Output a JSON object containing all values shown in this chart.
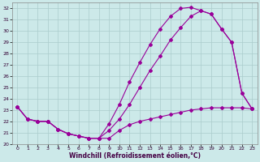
{
  "xlabel": "Windchill (Refroidissement éolien,°C)",
  "bg_color": "#cce9e9",
  "line_color": "#990099",
  "grid_color": "#aacccc",
  "xlim": [
    -0.5,
    23.5
  ],
  "ylim": [
    20,
    32.5
  ],
  "xticks": [
    0,
    1,
    2,
    3,
    4,
    5,
    6,
    7,
    8,
    9,
    10,
    11,
    12,
    13,
    14,
    15,
    16,
    17,
    18,
    19,
    20,
    21,
    22,
    23
  ],
  "yticks": [
    20,
    21,
    22,
    23,
    24,
    25,
    26,
    27,
    28,
    29,
    30,
    31,
    32
  ],
  "line1_x": [
    0,
    1,
    2,
    3,
    4,
    5,
    6,
    7,
    8,
    9,
    10,
    11,
    12,
    13,
    14,
    15,
    16,
    17,
    18,
    19,
    20,
    21,
    22,
    23
  ],
  "line1_y": [
    23.3,
    22.2,
    22.0,
    22.0,
    21.3,
    20.9,
    20.7,
    20.5,
    20.5,
    20.5,
    21.2,
    21.7,
    22.0,
    22.2,
    22.4,
    22.6,
    22.8,
    23.0,
    23.1,
    23.2,
    23.2,
    23.2,
    23.2,
    23.1
  ],
  "line2_x": [
    0,
    1,
    2,
    3,
    4,
    5,
    6,
    7,
    8,
    9,
    10,
    11,
    12,
    13,
    14,
    15,
    16,
    17,
    18,
    19,
    20,
    21,
    22,
    23
  ],
  "line2_y": [
    23.3,
    22.2,
    22.0,
    22.0,
    21.3,
    20.9,
    20.7,
    20.5,
    20.5,
    21.2,
    22.2,
    23.5,
    25.0,
    26.5,
    27.8,
    29.2,
    30.3,
    31.3,
    31.8,
    31.5,
    30.2,
    29.0,
    24.5,
    23.1
  ],
  "line3_x": [
    0,
    1,
    2,
    3,
    4,
    5,
    6,
    7,
    8,
    9,
    10,
    11,
    12,
    13,
    14,
    15,
    16,
    17,
    18,
    19,
    20,
    21,
    22,
    23
  ],
  "line3_y": [
    23.3,
    22.2,
    22.0,
    22.0,
    21.3,
    20.9,
    20.7,
    20.5,
    20.5,
    21.8,
    23.5,
    25.5,
    27.2,
    28.8,
    30.2,
    31.3,
    32.0,
    32.1,
    31.8,
    31.5,
    30.2,
    29.0,
    24.5,
    23.1
  ]
}
